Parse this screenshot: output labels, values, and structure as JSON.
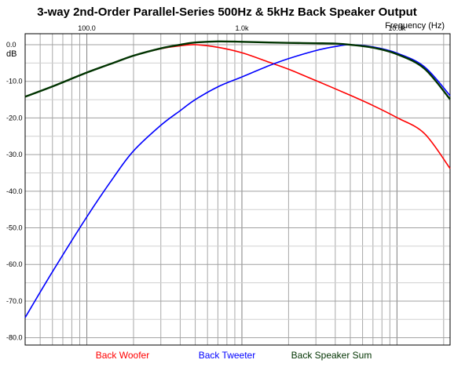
{
  "chart_data": {
    "type": "line",
    "title": "3-way 2nd-Order Parallel-Series 500Hz & 5kHz Back Speaker Output",
    "xlabel": "Frequency (Hz)",
    "ylabel": "dB",
    "x_scale": "log",
    "xlim": [
      40,
      22000
    ],
    "ylim": [
      -82,
      3
    ],
    "x_ticks": [
      {
        "value": 100,
        "label": "100.0"
      },
      {
        "value": 1000,
        "label": "1.0k"
      },
      {
        "value": 10000,
        "label": "10.0k"
      }
    ],
    "y_ticks": [
      {
        "value": 0,
        "label": "0.0"
      },
      {
        "value": -10,
        "label": "-10.0"
      },
      {
        "value": -20,
        "label": "-20.0"
      },
      {
        "value": -30,
        "label": "-30.0"
      },
      {
        "value": -40,
        "label": "-40.0"
      },
      {
        "value": -50,
        "label": "-50.0"
      },
      {
        "value": -60,
        "label": "-60.0"
      },
      {
        "value": -70,
        "label": "-70.0"
      },
      {
        "value": -80,
        "label": "-80.0"
      }
    ],
    "grid": true,
    "legend_position": "bottom",
    "series": [
      {
        "name": "Back Woofer",
        "color": "#ff0000",
        "x": [
          40,
          60,
          100,
          150,
          200,
          300,
          400,
          500,
          700,
          1000,
          1500,
          2000,
          3000,
          5000,
          7000,
          10000,
          15000,
          22000
        ],
        "y": [
          -14.2,
          -11.4,
          -7.6,
          -4.9,
          -3.0,
          -1.1,
          -0.3,
          0.0,
          -0.7,
          -2.2,
          -4.8,
          -6.7,
          -9.8,
          -13.8,
          -16.6,
          -19.9,
          -24.2,
          -33.8
        ]
      },
      {
        "name": "Back Tweeter",
        "color": "#0000ff",
        "x": [
          40,
          60,
          100,
          150,
          200,
          300,
          400,
          500,
          700,
          1000,
          1500,
          2000,
          3000,
          4000,
          5000,
          7000,
          10000,
          15000,
          22000
        ],
        "y": [
          -74.5,
          -62.0,
          -47.0,
          -36.0,
          -29.0,
          -22.0,
          -18.0,
          -15.0,
          -11.5,
          -8.8,
          -5.7,
          -3.8,
          -1.6,
          -0.5,
          0.0,
          -0.6,
          -2.3,
          -6.0,
          -13.9
        ]
      },
      {
        "name": "Back Speaker Sum",
        "color": "#003300",
        "x": [
          40,
          60,
          100,
          150,
          200,
          300,
          400,
          500,
          700,
          1000,
          1500,
          2000,
          3000,
          4000,
          5000,
          7000,
          10000,
          15000,
          22000
        ],
        "y": [
          -14.2,
          -11.4,
          -7.6,
          -4.9,
          -3.0,
          -1.0,
          0.0,
          0.6,
          0.9,
          0.8,
          0.6,
          0.5,
          0.4,
          0.3,
          0.0,
          -0.8,
          -2.6,
          -6.5,
          -14.9
        ]
      }
    ]
  }
}
